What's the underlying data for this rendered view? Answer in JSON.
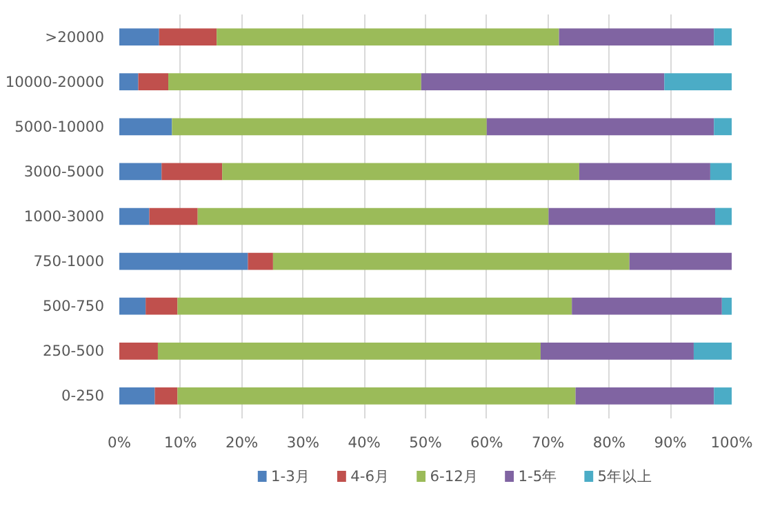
{
  "chart_data": {
    "type": "bar",
    "orientation": "horizontal",
    "stacked": true,
    "categories": [
      ">20000",
      "10000-20000",
      "5000-10000",
      "3000-5000",
      "1000-3000",
      "750-1000",
      "500-750",
      "250-500",
      "0-250"
    ],
    "series": [
      {
        "name": "1-3月",
        "color": "#4f81bd",
        "values": [
          6.5,
          3.1,
          8.6,
          6.9,
          4.9,
          21.0,
          4.3,
          0,
          5.8
        ]
      },
      {
        "name": "4-6月",
        "color": "#c0504d",
        "values": [
          9.4,
          4.9,
          0,
          9.9,
          7.9,
          4.1,
          5.2,
          6.3,
          3.7
        ]
      },
      {
        "name": "6-12月",
        "color": "#9bbb59",
        "values": [
          55.9,
          41.3,
          51.4,
          58.3,
          57.3,
          58.2,
          64.4,
          62.5,
          65.0
        ]
      },
      {
        "name": "1-5年",
        "color": "#8064a2",
        "values": [
          25.3,
          39.7,
          37.1,
          21.4,
          27.2,
          16.7,
          24.5,
          25.0,
          22.6
        ]
      },
      {
        "name": "5年以上",
        "color": "#4bacc6",
        "values": [
          2.9,
          11.0,
          2.9,
          3.5,
          2.7,
          0,
          1.6,
          6.2,
          2.9
        ]
      }
    ],
    "xlim": [
      0,
      100
    ],
    "xticks": [
      {
        "value": 0,
        "label": "0%"
      },
      {
        "value": 10,
        "label": "10%"
      },
      {
        "value": 20,
        "label": "20%"
      },
      {
        "value": 30,
        "label": "30%"
      },
      {
        "value": 40,
        "label": "40%"
      },
      {
        "value": 50,
        "label": "50%"
      },
      {
        "value": 60,
        "label": "60%"
      },
      {
        "value": 70,
        "label": "70%"
      },
      {
        "value": 80,
        "label": "80%"
      },
      {
        "value": 90,
        "label": "90%"
      },
      {
        "value": 100,
        "label": "100%"
      }
    ],
    "grid": "x",
    "legend": "bottom"
  }
}
